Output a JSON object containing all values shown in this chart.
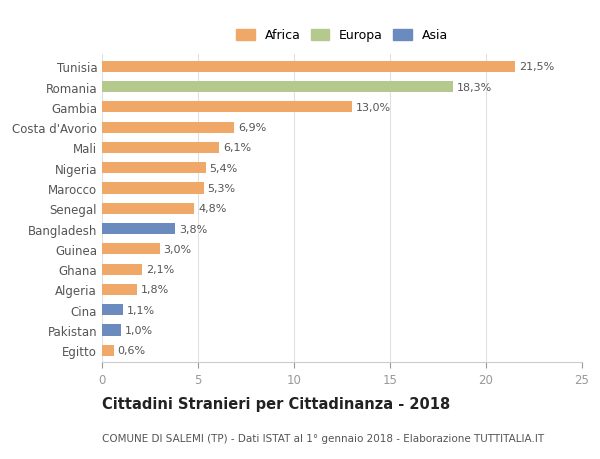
{
  "categories": [
    "Tunisia",
    "Romania",
    "Gambia",
    "Costa d'Avorio",
    "Mali",
    "Nigeria",
    "Marocco",
    "Senegal",
    "Bangladesh",
    "Guinea",
    "Ghana",
    "Algeria",
    "Cina",
    "Pakistan",
    "Egitto"
  ],
  "values": [
    21.5,
    18.3,
    13.0,
    6.9,
    6.1,
    5.4,
    5.3,
    4.8,
    3.8,
    3.0,
    2.1,
    1.8,
    1.1,
    1.0,
    0.6
  ],
  "labels": [
    "21,5%",
    "18,3%",
    "13,0%",
    "6,9%",
    "6,1%",
    "5,4%",
    "5,3%",
    "4,8%",
    "3,8%",
    "3,0%",
    "2,1%",
    "1,8%",
    "1,1%",
    "1,0%",
    "0,6%"
  ],
  "continents": [
    "Africa",
    "Europa",
    "Africa",
    "Africa",
    "Africa",
    "Africa",
    "Africa",
    "Africa",
    "Asia",
    "Africa",
    "Africa",
    "Africa",
    "Asia",
    "Asia",
    "Africa"
  ],
  "colors": {
    "Africa": "#F0A868",
    "Europa": "#B5C98E",
    "Asia": "#6B8BBF"
  },
  "legend_labels": [
    "Africa",
    "Europa",
    "Asia"
  ],
  "xlim": [
    0,
    25
  ],
  "xticks": [
    0,
    5,
    10,
    15,
    20,
    25
  ],
  "title": "Cittadini Stranieri per Cittadinanza - 2018",
  "subtitle": "COMUNE DI SALEMI (TP) - Dati ISTAT al 1° gennaio 2018 - Elaborazione TUTTITALIA.IT",
  "background_color": "#ffffff",
  "bar_height": 0.55,
  "label_fontsize": 8.0,
  "title_fontsize": 10.5,
  "subtitle_fontsize": 7.5,
  "ytick_fontsize": 8.5,
  "xtick_fontsize": 8.5,
  "legend_fontsize": 9.0,
  "grid_color": "#e0e0e0",
  "label_color": "#555555",
  "ytick_color": "#555555",
  "xtick_color": "#999999"
}
